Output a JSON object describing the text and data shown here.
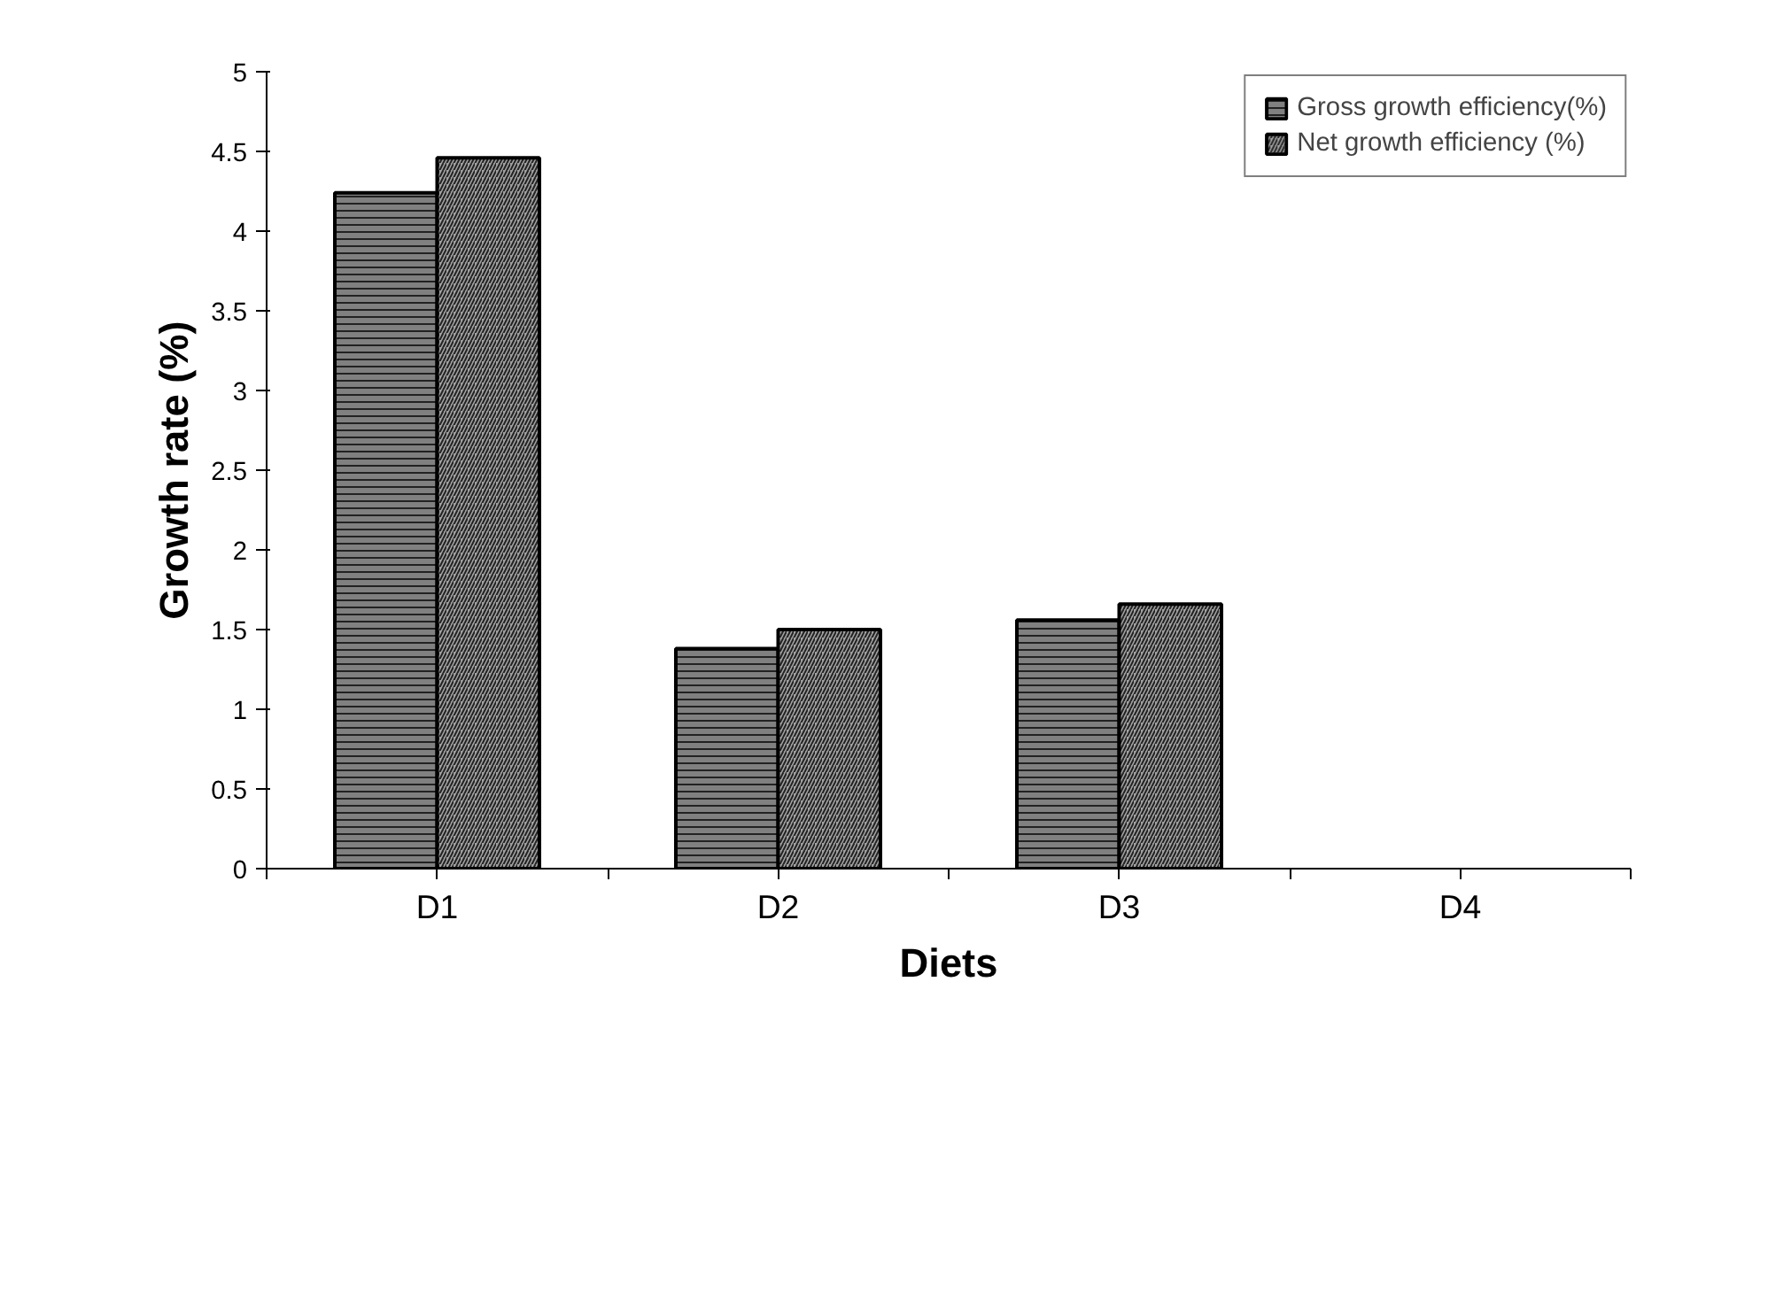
{
  "chart_data": {
    "type": "bar",
    "xlabel": "Diets",
    "ylabel": "Growth rate (%)",
    "categories": [
      "D1",
      "D2",
      "D3",
      "D4"
    ],
    "series": [
      {
        "name": "Gross growth efficiency(%)",
        "color": "#808080",
        "values": [
          4.24,
          1.38,
          1.56,
          null
        ]
      },
      {
        "name": "Net growth efficiency (%)",
        "color": "#a0a0a0",
        "values": [
          4.46,
          1.5,
          1.66,
          null
        ]
      }
    ],
    "ylim": [
      0,
      5
    ],
    "yticks": [
      0,
      0.5,
      1,
      1.5,
      2,
      2.5,
      3,
      3.5,
      4,
      4.5,
      5
    ],
    "grid": false,
    "legend": "top right"
  }
}
